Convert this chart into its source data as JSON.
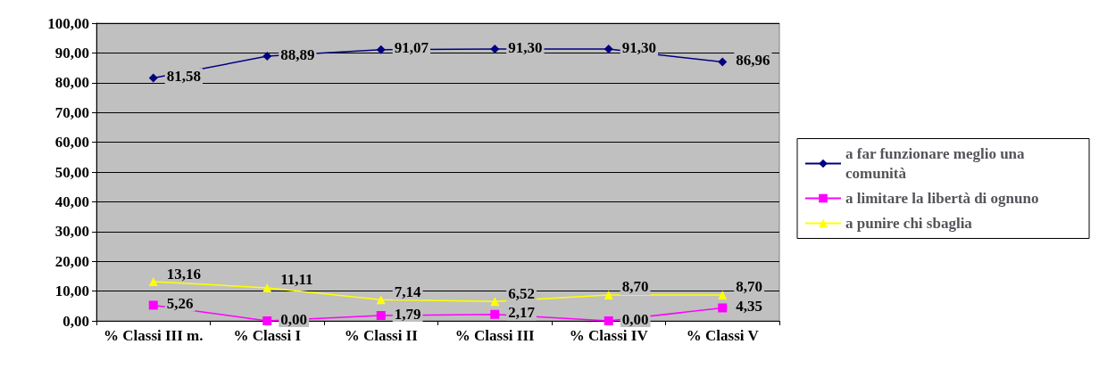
{
  "chart_data": {
    "type": "line",
    "categories": [
      "% Classi III m.",
      "% Classi I",
      "% Classi II",
      "% Classi III",
      "% Classi IV",
      "% Classi V"
    ],
    "series": [
      {
        "name": "a far funzionare meglio una comunità",
        "color": "#000080",
        "marker": "diamond",
        "values": [
          81.58,
          88.89,
          91.07,
          91.3,
          91.3,
          86.96
        ],
        "value_labels": [
          "81,58",
          "88,89",
          "91,07",
          "91,30",
          "91,30",
          "86,96"
        ]
      },
      {
        "name": "a limitare la libertà di ognuno",
        "color": "#ff00ff",
        "marker": "square",
        "values": [
          5.26,
          0.0,
          1.79,
          2.17,
          0.0,
          4.35
        ],
        "value_labels": [
          "5,26",
          "0,00",
          "1,79",
          "2,17",
          "0,00",
          "4,35"
        ]
      },
      {
        "name": "a punire chi sbaglia",
        "color": "#ffff00",
        "marker": "triangle",
        "values": [
          13.16,
          11.11,
          7.14,
          6.52,
          8.7,
          8.7
        ],
        "value_labels": [
          "13,16",
          "11,11",
          "7,14",
          "6,52",
          "8,70",
          "8,70"
        ]
      }
    ],
    "ylim": [
      0,
      100
    ],
    "yticks": [
      {
        "value": 0,
        "label": "0,00"
      },
      {
        "value": 10,
        "label": "10,00"
      },
      {
        "value": 20,
        "label": "20,00"
      },
      {
        "value": 30,
        "label": "30,00"
      },
      {
        "value": 40,
        "label": "40,00"
      },
      {
        "value": 50,
        "label": "50,00"
      },
      {
        "value": 60,
        "label": "60,00"
      },
      {
        "value": 70,
        "label": "70,00"
      },
      {
        "value": 80,
        "label": "80,00"
      },
      {
        "value": 90,
        "label": "90,00"
      },
      {
        "value": 100,
        "label": "100,00"
      }
    ],
    "grid": "y",
    "legend": "right"
  }
}
